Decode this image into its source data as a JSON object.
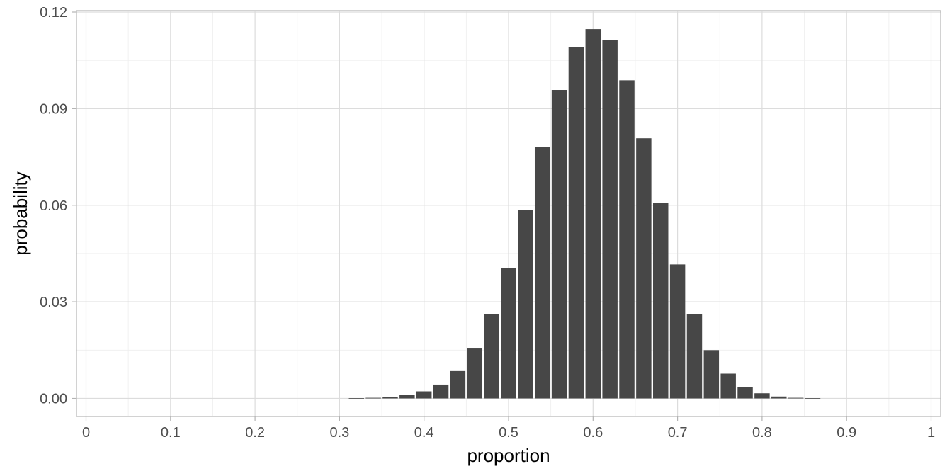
{
  "chart_data": {
    "type": "bar",
    "xlabel": "proportion",
    "ylabel": "probability",
    "xlim": [
      0,
      1
    ],
    "ylim": [
      0,
      0.12
    ],
    "x_ticks": [
      "0",
      "0.1",
      "0.2",
      "0.3",
      "0.4",
      "0.5",
      "0.6",
      "0.7",
      "0.8",
      "0.9",
      "1"
    ],
    "y_ticks": [
      "0.00",
      "0.03",
      "0.06",
      "0.09",
      "0.12"
    ],
    "grid": true,
    "x": [
      0.32,
      0.34,
      0.36,
      0.38,
      0.4,
      0.42,
      0.44,
      0.46,
      0.48,
      0.5,
      0.52,
      0.54,
      0.56,
      0.58,
      0.6,
      0.62,
      0.64,
      0.66,
      0.68,
      0.7,
      0.72,
      0.74,
      0.76,
      0.78,
      0.8,
      0.82,
      0.84,
      0.86
    ],
    "values": [
      0.0001,
      0.0002,
      0.0005,
      0.001,
      0.0022,
      0.0043,
      0.0085,
      0.0155,
      0.0262,
      0.0405,
      0.0585,
      0.078,
      0.0958,
      0.1092,
      0.1147,
      0.1112,
      0.0988,
      0.0808,
      0.0607,
      0.0416,
      0.0262,
      0.015,
      0.0077,
      0.0036,
      0.0016,
      0.0006,
      0.0002,
      0.0001
    ],
    "colors": {
      "bar": "#474747",
      "panel_border": "#b3b3b3",
      "grid_major": "#dcdcdc",
      "grid_minor": "#eeeeee",
      "tick_text": "#4d4d4d"
    }
  }
}
